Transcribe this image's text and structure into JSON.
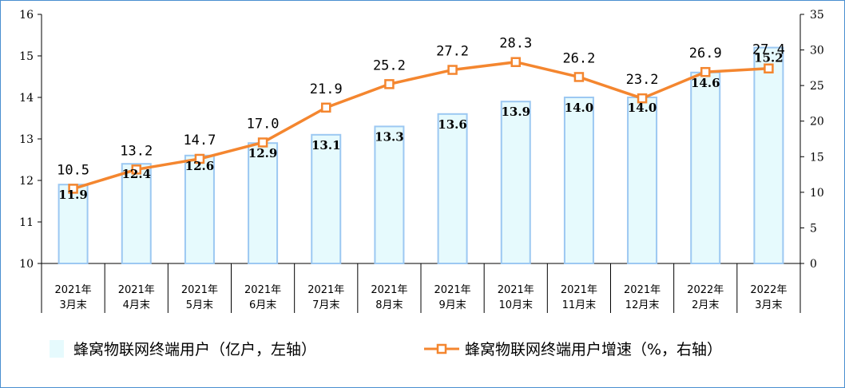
{
  "chart_data": {
    "type": "bar+line",
    "categories": [
      [
        "2021年",
        "3月末"
      ],
      [
        "2021年",
        "4月末"
      ],
      [
        "2021年",
        "5月末"
      ],
      [
        "2021年",
        "6月末"
      ],
      [
        "2021年",
        "7月末"
      ],
      [
        "2021年",
        "8月末"
      ],
      [
        "2021年",
        "9月末"
      ],
      [
        "2021年",
        "10月末"
      ],
      [
        "2021年",
        "11月末"
      ],
      [
        "2021年",
        "12月末"
      ],
      [
        "2022年",
        "2月末"
      ],
      [
        "2022年",
        "3月末"
      ]
    ],
    "series": [
      {
        "name": "蜂窝物联网终端用户（亿户，左轴）",
        "type": "bar",
        "axis": "left",
        "values": [
          11.9,
          12.4,
          12.6,
          12.9,
          13.1,
          13.3,
          13.6,
          13.9,
          14.0,
          14.0,
          14.6,
          15.2
        ],
        "labels": [
          "11.9",
          "12.4",
          "12.6",
          "12.9",
          "13.1",
          "13.3",
          "13.6",
          "13.9",
          "14.0",
          "14.0",
          "14.6",
          "15.2"
        ]
      },
      {
        "name": "蜂窝物联网终端用户增速（%，右轴）",
        "type": "line",
        "axis": "right",
        "values": [
          10.5,
          13.2,
          14.7,
          17.0,
          21.9,
          25.2,
          27.2,
          28.3,
          26.2,
          23.2,
          26.9,
          27.4
        ],
        "labels": [
          "10.5",
          "13.2",
          "14.7",
          "17.0",
          "21.9",
          "25.2",
          "27.2",
          "28.3",
          "26.2",
          "23.2",
          "26.9",
          "27.4"
        ]
      }
    ],
    "left_axis": {
      "min": 10,
      "max": 16,
      "ticks": [
        "10",
        "11",
        "12",
        "13",
        "14",
        "15",
        "16"
      ]
    },
    "right_axis": {
      "min": 0,
      "max": 35,
      "ticks": [
        "0",
        "5",
        "10",
        "15",
        "20",
        "25",
        "30",
        "35"
      ]
    },
    "legend_position": "bottom",
    "colors": {
      "bar_fill": "#e6fafd",
      "bar_stroke": "#9cc8f2",
      "line": "#f4862f",
      "marker_fill": "#ffffff",
      "axis": "#000000",
      "frame": "#4a8fd0"
    }
  }
}
